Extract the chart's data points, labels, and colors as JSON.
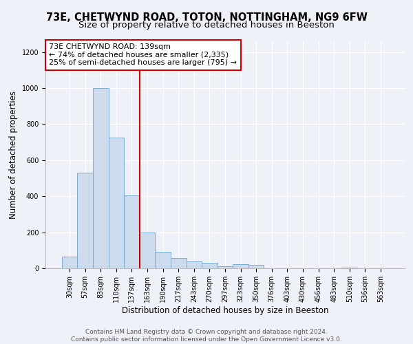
{
  "title": "73E, CHETWYND ROAD, TOTON, NOTTINGHAM, NG9 6FW",
  "subtitle": "Size of property relative to detached houses in Beeston",
  "xlabel": "Distribution of detached houses by size in Beeston",
  "ylabel": "Number of detached properties",
  "categories": [
    "30sqm",
    "57sqm",
    "83sqm",
    "110sqm",
    "137sqm",
    "163sqm",
    "190sqm",
    "217sqm",
    "243sqm",
    "270sqm",
    "297sqm",
    "323sqm",
    "350sqm",
    "376sqm",
    "403sqm",
    "430sqm",
    "456sqm",
    "483sqm",
    "510sqm",
    "536sqm",
    "563sqm"
  ],
  "values": [
    65,
    530,
    1000,
    725,
    405,
    200,
    90,
    58,
    38,
    32,
    10,
    22,
    18,
    0,
    0,
    0,
    0,
    0,
    5,
    0,
    0
  ],
  "bar_color": "#ccdcee",
  "bar_edge_color": "#7aacd0",
  "vline_x": 4.5,
  "vline_color": "#cc0000",
  "annotation_text": "73E CHETWYND ROAD: 139sqm\n← 74% of detached houses are smaller (2,335)\n25% of semi-detached houses are larger (795) →",
  "annotation_box_color": "#ffffff",
  "annotation_box_edge": "#cc0000",
  "ylim": [
    0,
    1260
  ],
  "yticks": [
    0,
    200,
    400,
    600,
    800,
    1000,
    1200
  ],
  "background_color": "#eef2f8",
  "footer_line1": "Contains HM Land Registry data © Crown copyright and database right 2024.",
  "footer_line2": "Contains public sector information licensed under the Open Government Licence v3.0.",
  "title_fontsize": 10.5,
  "subtitle_fontsize": 9.5,
  "xlabel_fontsize": 8.5,
  "ylabel_fontsize": 8.5,
  "tick_fontsize": 7,
  "footer_fontsize": 6.5,
  "annotation_fontsize": 8
}
